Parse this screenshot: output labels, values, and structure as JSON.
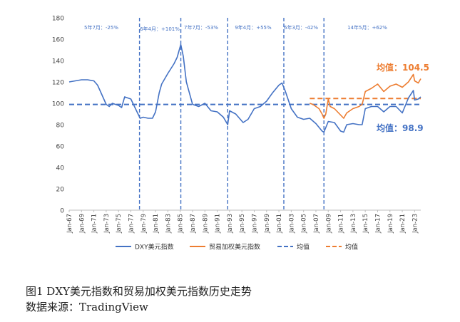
{
  "chart_data": {
    "type": "line",
    "ylim": [
      0,
      180
    ],
    "yticks": [
      0,
      20,
      40,
      60,
      80,
      100,
      120,
      140,
      160,
      180
    ],
    "xlim": [
      1967,
      2024
    ],
    "xticks": [
      "Jan-67",
      "Jan-69",
      "Jan-71",
      "Jan-73",
      "Jan-75",
      "Jan-77",
      "Jan-79",
      "Jan-81",
      "Jan-83",
      "Jan-85",
      "Jan-87",
      "Jan-89",
      "Jan-91",
      "Jan-93",
      "Jan-95",
      "Jan-97",
      "Jan-99",
      "Jan-01",
      "Jan-03",
      "Jan-05",
      "Jan-07",
      "Jan-09",
      "Jan-11",
      "Jan-13",
      "Jan-15",
      "Jan-17",
      "Jan-19",
      "Jan-21",
      "Jan-23"
    ],
    "grid": false,
    "legend_position": "bottom",
    "series": [
      {
        "name": "DXY美元指数",
        "color": "#4472C4",
        "x": [
          1967.0,
          1968.0,
          1969.0,
          1970.0,
          1971.0,
          1971.6,
          1972.0,
          1973.0,
          1973.5,
          1974.0,
          1975.0,
          1975.5,
          1976.0,
          1977.0,
          1978.0,
          1978.5,
          1979.0,
          1979.8,
          1980.5,
          1981.0,
          1981.6,
          1982.0,
          1983.0,
          1984.0,
          1984.5,
          1985.1,
          1985.5,
          1986.0,
          1987.0,
          1988.0,
          1989.0,
          1990.0,
          1991.0,
          1992.0,
          1992.7,
          1993.0,
          1994.0,
          1995.2,
          1996.0,
          1997.0,
          1998.0,
          1999.0,
          2000.0,
          2001.0,
          2001.5,
          2002.0,
          2003.0,
          2004.0,
          2005.0,
          2006.0,
          2007.0,
          2008.0,
          2008.3,
          2009.0,
          2010.0,
          2011.0,
          2011.5,
          2012.0,
          2013.0,
          2014.0,
          2014.5,
          2015.0,
          2016.0,
          2017.0,
          2018.0,
          2019.0,
          2020.0,
          2021.0,
          2022.0,
          2022.8,
          2023.0,
          2023.6,
          2024.0
        ],
        "y": [
          120,
          121,
          122,
          122,
          121,
          117,
          112,
          99,
          97,
          100,
          98,
          96,
          106,
          104,
          92,
          86,
          87,
          86,
          86,
          92,
          110,
          118,
          128,
          137,
          143,
          155,
          144,
          120,
          99,
          97,
          100,
          93,
          92,
          87,
          80,
          93,
          90,
          82,
          85,
          95,
          97,
          102,
          110,
          117,
          119,
          112,
          95,
          87,
          85,
          86,
          81,
          74,
          73,
          83,
          82,
          74,
          73,
          80,
          81,
          80,
          80,
          95,
          97,
          97,
          92,
          97,
          97,
          91,
          105,
          112,
          103,
          104,
          106
        ]
      },
      {
        "name": "贸易加权美元指数",
        "color": "#ED7D31",
        "x": [
          2006.0,
          2006.5,
          2007.0,
          2007.5,
          2008.0,
          2008.3,
          2008.6,
          2009.0,
          2009.3,
          2010.0,
          2011.0,
          2011.5,
          2012.0,
          2013.0,
          2014.0,
          2014.5,
          2015.0,
          2016.0,
          2017.0,
          2018.0,
          2019.0,
          2020.0,
          2021.0,
          2022.0,
          2022.8,
          2023.0,
          2023.6,
          2024.0
        ],
        "y": [
          100,
          99,
          97,
          95,
          90,
          86,
          90,
          104,
          97,
          95,
          89,
          86,
          91,
          95,
          97,
          99,
          111,
          114,
          118,
          111,
          116,
          118,
          115,
          120,
          127,
          121,
          119,
          123
        ]
      },
      {
        "name": "均值",
        "color": "#4472C4",
        "dashed": true,
        "value": 98.9
      },
      {
        "name": "均值",
        "color": "#ED7D31",
        "dashed": true,
        "x_start": 2006.0,
        "value": 104.5
      }
    ],
    "vlines": [
      1978.4,
      1985.1,
      1992.7,
      2001.8,
      2008.3
    ]
  },
  "annotations": {
    "periods": [
      "5年7月：-25%",
      "6年4月：+101%",
      "7年7月：-53%",
      "9年4月：+55%",
      "6年3月：-42%",
      "14年5月：+62%"
    ],
    "mean_labels": [
      "均值：104.5",
      "均值：98.9"
    ]
  },
  "caption": {
    "title": "图1  DXY美元指数和贸易加权美元指数历史走势",
    "source": "数据来源：TradingView"
  }
}
